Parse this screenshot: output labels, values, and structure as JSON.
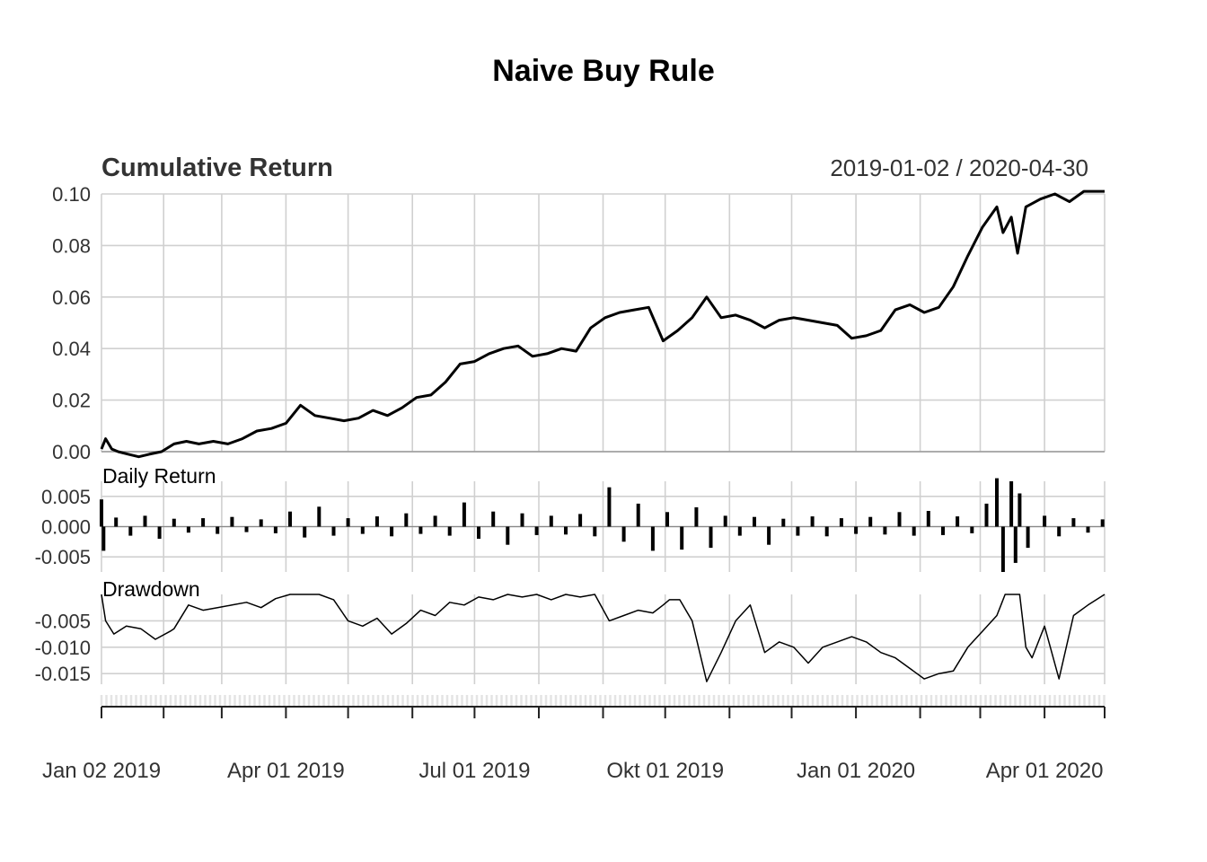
{
  "title": "Naive Buy Rule",
  "date_range": "2019-01-02 / 2020-04-30",
  "x_labels": [
    "Jan 02 2019",
    "Apr 01 2019",
    "Jul 01 2019",
    "Okt 01 2019",
    "Jan 01 2020",
    "Apr 01 2020"
  ],
  "colors": {
    "line": "#000000",
    "grid": "#d0d0d0",
    "text": "#333333"
  },
  "chart_data": [
    {
      "type": "line",
      "title": "Cumulative Return",
      "ylim": [
        0,
        0.1
      ],
      "y_ticks": [
        "0.00",
        "0.02",
        "0.04",
        "0.06",
        "0.08",
        "0.10"
      ],
      "x": [
        "2019-01-02",
        "2019-01-04",
        "2019-01-07",
        "2019-01-10",
        "2019-01-15",
        "2019-01-20",
        "2019-01-25",
        "2019-01-31",
        "2019-02-06",
        "2019-02-12",
        "2019-02-18",
        "2019-02-25",
        "2019-03-04",
        "2019-03-11",
        "2019-03-18",
        "2019-03-25",
        "2019-04-01",
        "2019-04-08",
        "2019-04-15",
        "2019-04-22",
        "2019-04-29",
        "2019-05-06",
        "2019-05-13",
        "2019-05-20",
        "2019-05-27",
        "2019-06-03",
        "2019-06-10",
        "2019-06-17",
        "2019-06-24",
        "2019-07-01",
        "2019-07-08",
        "2019-07-15",
        "2019-07-22",
        "2019-07-29",
        "2019-08-05",
        "2019-08-12",
        "2019-08-19",
        "2019-08-26",
        "2019-09-02",
        "2019-09-09",
        "2019-09-16",
        "2019-09-23",
        "2019-09-30",
        "2019-10-07",
        "2019-10-14",
        "2019-10-21",
        "2019-10-28",
        "2019-11-04",
        "2019-11-11",
        "2019-11-18",
        "2019-11-25",
        "2019-12-02",
        "2019-12-09",
        "2019-12-16",
        "2019-12-23",
        "2019-12-30",
        "2020-01-06",
        "2020-01-13",
        "2020-01-20",
        "2020-01-27",
        "2020-02-03",
        "2020-02-10",
        "2020-02-17",
        "2020-02-24",
        "2020-03-02",
        "2020-03-09",
        "2020-03-12",
        "2020-03-16",
        "2020-03-19",
        "2020-03-23",
        "2020-03-30",
        "2020-04-06",
        "2020-04-13",
        "2020-04-20",
        "2020-04-30"
      ],
      "values": [
        0.001,
        0.005,
        0.001,
        0.0,
        -0.001,
        -0.002,
        -0.001,
        0.0,
        0.003,
        0.004,
        0.003,
        0.004,
        0.003,
        0.005,
        0.008,
        0.009,
        0.011,
        0.018,
        0.014,
        0.013,
        0.012,
        0.013,
        0.016,
        0.014,
        0.017,
        0.021,
        0.022,
        0.027,
        0.034,
        0.035,
        0.038,
        0.04,
        0.041,
        0.037,
        0.038,
        0.04,
        0.039,
        0.048,
        0.052,
        0.054,
        0.055,
        0.056,
        0.043,
        0.047,
        0.052,
        0.06,
        0.052,
        0.053,
        0.051,
        0.048,
        0.051,
        0.052,
        0.051,
        0.05,
        0.049,
        0.044,
        0.045,
        0.047,
        0.055,
        0.057,
        0.054,
        0.056,
        0.064,
        0.076,
        0.087,
        0.095,
        0.085,
        0.091,
        0.077,
        0.095,
        0.098,
        0.1,
        0.097,
        0.101,
        0.101
      ]
    },
    {
      "type": "bar",
      "title": "Daily Return",
      "ylim": [
        -0.0075,
        0.0075
      ],
      "y_ticks": [
        "-0.005",
        "0.000",
        "0.005"
      ],
      "x": [
        "2019-01-02",
        "2019-01-03",
        "2019-01-09",
        "2019-01-16",
        "2019-01-23",
        "2019-01-30",
        "2019-02-06",
        "2019-02-13",
        "2019-02-20",
        "2019-02-27",
        "2019-03-06",
        "2019-03-13",
        "2019-03-20",
        "2019-03-27",
        "2019-04-03",
        "2019-04-10",
        "2019-04-17",
        "2019-04-24",
        "2019-05-01",
        "2019-05-08",
        "2019-05-15",
        "2019-05-22",
        "2019-05-29",
        "2019-06-05",
        "2019-06-12",
        "2019-06-19",
        "2019-06-26",
        "2019-07-03",
        "2019-07-10",
        "2019-07-17",
        "2019-07-24",
        "2019-07-31",
        "2019-08-07",
        "2019-08-14",
        "2019-08-21",
        "2019-08-28",
        "2019-09-04",
        "2019-09-11",
        "2019-09-18",
        "2019-09-25",
        "2019-10-02",
        "2019-10-09",
        "2019-10-16",
        "2019-10-23",
        "2019-10-30",
        "2019-11-06",
        "2019-11-13",
        "2019-11-20",
        "2019-11-27",
        "2019-12-04",
        "2019-12-11",
        "2019-12-18",
        "2019-12-25",
        "2020-01-01",
        "2020-01-08",
        "2020-01-15",
        "2020-01-22",
        "2020-01-29",
        "2020-02-05",
        "2020-02-12",
        "2020-02-19",
        "2020-02-26",
        "2020-03-04",
        "2020-03-09",
        "2020-03-12",
        "2020-03-16",
        "2020-03-18",
        "2020-03-20",
        "2020-03-24",
        "2020-04-01",
        "2020-04-08",
        "2020-04-15",
        "2020-04-22",
        "2020-04-29"
      ],
      "values": [
        0.0045,
        -0.004,
        0.0015,
        -0.0015,
        0.0018,
        -0.002,
        0.0013,
        -0.001,
        0.0014,
        -0.0012,
        0.0016,
        -0.0009,
        0.0012,
        -0.0011,
        0.0025,
        -0.0018,
        0.0033,
        -0.0015,
        0.0014,
        -0.0012,
        0.0017,
        -0.0016,
        0.0022,
        -0.0012,
        0.0018,
        -0.0015,
        0.004,
        -0.002,
        0.0025,
        -0.003,
        0.0022,
        -0.0014,
        0.0018,
        -0.0013,
        0.0021,
        -0.0016,
        0.0065,
        -0.0025,
        0.0038,
        -0.004,
        0.0024,
        -0.0038,
        0.0032,
        -0.0035,
        0.0018,
        -0.0015,
        0.0016,
        -0.003,
        0.0013,
        -0.0015,
        0.0017,
        -0.0016,
        0.0014,
        -0.0012,
        0.0016,
        -0.0013,
        0.0024,
        -0.0015,
        0.0026,
        -0.0014,
        0.0017,
        -0.0011,
        0.0038,
        0.008,
        -0.0075,
        0.0075,
        -0.006,
        0.0055,
        -0.0035,
        0.0018,
        -0.0016,
        0.0014,
        -0.001,
        0.0012
      ]
    },
    {
      "type": "line",
      "title": "Drawdown",
      "ylim": [
        -0.017,
        0.0
      ],
      "y_ticks": [
        "-0.005",
        "-0.010",
        "-0.015"
      ],
      "x": [
        "2019-01-02",
        "2019-01-04",
        "2019-01-08",
        "2019-01-14",
        "2019-01-21",
        "2019-01-28",
        "2019-02-04",
        "2019-02-06",
        "2019-02-13",
        "2019-02-20",
        "2019-02-27",
        "2019-03-06",
        "2019-03-13",
        "2019-03-20",
        "2019-03-27",
        "2019-04-03",
        "2019-04-10",
        "2019-04-17",
        "2019-04-24",
        "2019-05-01",
        "2019-05-08",
        "2019-05-15",
        "2019-05-22",
        "2019-05-29",
        "2019-06-05",
        "2019-06-12",
        "2019-06-19",
        "2019-06-26",
        "2019-07-03",
        "2019-07-10",
        "2019-07-17",
        "2019-07-24",
        "2019-07-31",
        "2019-08-07",
        "2019-08-14",
        "2019-08-21",
        "2019-08-28",
        "2019-09-04",
        "2019-09-11",
        "2019-09-18",
        "2019-09-25",
        "2019-09-30",
        "2019-10-03",
        "2019-10-08",
        "2019-10-14",
        "2019-10-21",
        "2019-10-28",
        "2019-11-04",
        "2019-11-11",
        "2019-11-18",
        "2019-11-25",
        "2019-12-02",
        "2019-12-09",
        "2019-12-16",
        "2019-12-23",
        "2019-12-30",
        "2020-01-06",
        "2020-01-13",
        "2020-01-20",
        "2020-01-27",
        "2020-02-03",
        "2020-02-10",
        "2020-02-17",
        "2020-02-24",
        "2020-03-02",
        "2020-03-09",
        "2020-03-11",
        "2020-03-13",
        "2020-03-16",
        "2020-03-18",
        "2020-03-20",
        "2020-03-23",
        "2020-03-26",
        "2020-04-01",
        "2020-04-08",
        "2020-04-15",
        "2020-04-22",
        "2020-04-30"
      ],
      "values": [
        0.0,
        -0.005,
        -0.0075,
        -0.006,
        -0.0065,
        -0.0085,
        -0.007,
        -0.0065,
        -0.002,
        -0.003,
        -0.0025,
        -0.002,
        -0.0015,
        -0.0025,
        -0.0008,
        0.0,
        0.0,
        0.0,
        -0.001,
        -0.005,
        -0.006,
        -0.0045,
        -0.0075,
        -0.0055,
        -0.003,
        -0.004,
        -0.0015,
        -0.002,
        -0.0005,
        -0.001,
        0.0,
        -0.0005,
        0.0,
        -0.001,
        0.0,
        -0.0005,
        0.0,
        -0.005,
        -0.004,
        -0.003,
        -0.0035,
        -0.002,
        -0.001,
        -0.001,
        -0.005,
        -0.0165,
        -0.011,
        -0.005,
        -0.002,
        -0.011,
        -0.009,
        -0.01,
        -0.013,
        -0.01,
        -0.009,
        -0.008,
        -0.009,
        -0.011,
        -0.012,
        -0.014,
        -0.016,
        -0.015,
        -0.0145,
        -0.01,
        -0.007,
        -0.004,
        -0.002,
        0.0,
        0.0,
        0.0,
        0.0,
        -0.01,
        -0.012,
        -0.006,
        -0.016,
        -0.004,
        -0.002,
        0.0
      ]
    }
  ]
}
